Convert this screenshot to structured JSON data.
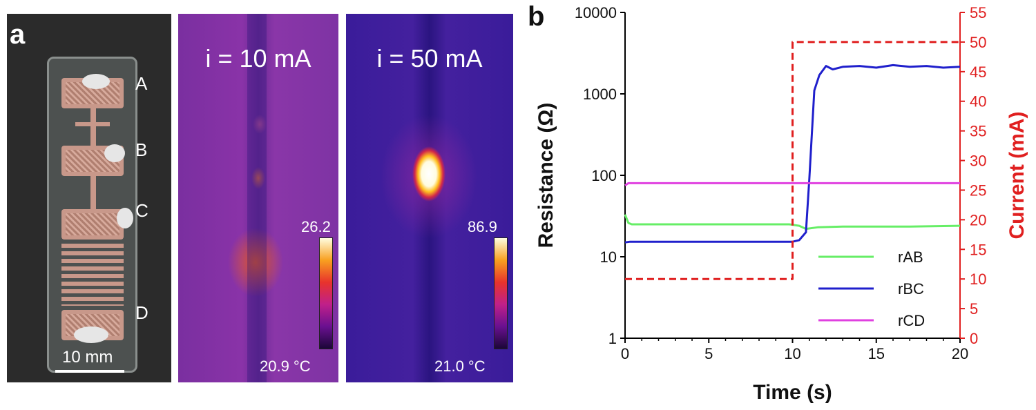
{
  "panel_a": {
    "label": "a",
    "photo": {
      "pad_labels": [
        "A",
        "B",
        "C",
        "D"
      ],
      "scale_bar": "10 mm"
    },
    "thermal_low": {
      "title": "i = 10 mA",
      "cbar_max": "26.2",
      "cbar_min": "20.9 °C"
    },
    "thermal_high": {
      "title": "i = 50 mA",
      "cbar_max": "86.9",
      "cbar_min": "21.0 °C"
    }
  },
  "panel_b": {
    "label": "b"
  },
  "chart_data": {
    "type": "line",
    "xlabel": "Time (s)",
    "ylabel": "Resistance (Ω)",
    "y2label": "Current (mA)",
    "xlim": [
      0,
      20
    ],
    "ylim": [
      1,
      10000
    ],
    "y_scale": "log",
    "y2lim": [
      0,
      55
    ],
    "x_ticks": [
      "0",
      "5",
      "10",
      "15",
      "20"
    ],
    "y_ticks": [
      "1",
      "10",
      "100",
      "1000",
      "10000"
    ],
    "y2_ticks": [
      "0",
      "5",
      "10",
      "15",
      "20",
      "25",
      "30",
      "35",
      "40",
      "45",
      "50",
      "55"
    ],
    "legend_position": "bottom-right",
    "colors": {
      "rAB": "#66ee66",
      "rBC": "#1f1fcc",
      "rCD": "#e040e0",
      "current": "#e01f1f",
      "right_axis": "#e01f1f"
    },
    "series": [
      {
        "name": "rAB",
        "axis": "left",
        "x": [
          0,
          0.2,
          0.4,
          1,
          5,
          9.8,
          10.4,
          10.8,
          11.5,
          13,
          15,
          17,
          20
        ],
        "y": [
          33,
          26,
          25,
          25,
          25,
          25,
          24,
          22,
          23,
          23.5,
          23.5,
          23.5,
          24
        ]
      },
      {
        "name": "rBC",
        "axis": "left",
        "x": [
          0,
          0.3,
          2,
          5,
          8,
          10,
          10.4,
          10.8,
          11,
          11.3,
          11.6,
          12,
          12.4,
          13,
          14,
          15,
          16,
          17,
          18,
          19,
          20
        ],
        "y": [
          15,
          15.3,
          15.3,
          15.3,
          15.3,
          15.3,
          16,
          20,
          90,
          1100,
          1700,
          2200,
          2000,
          2150,
          2200,
          2100,
          2250,
          2150,
          2200,
          2100,
          2150
        ]
      },
      {
        "name": "rCD",
        "axis": "left",
        "x": [
          0,
          0.2,
          5,
          10,
          15,
          20
        ],
        "y": [
          75,
          80,
          80,
          80,
          80,
          80
        ]
      },
      {
        "name": "",
        "axis": "right",
        "style": "dashed",
        "x": [
          0,
          10,
          10,
          20
        ],
        "y": [
          10,
          10,
          50,
          50
        ]
      }
    ]
  }
}
